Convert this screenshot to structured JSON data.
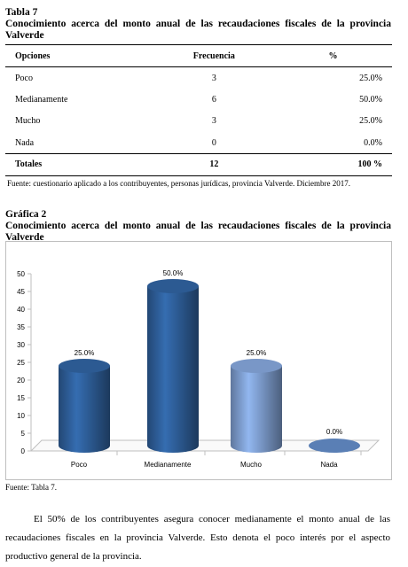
{
  "table": {
    "label": "Tabla 7",
    "caption": "Conocimiento acerca del monto anual de las recaudaciones fiscales de la provincia Valverde",
    "headers": [
      "Opciones",
      "Frecuencia",
      "%"
    ],
    "rows": [
      {
        "option": "Poco",
        "frequency": "3",
        "percent": "25.0%"
      },
      {
        "option": "Medianamente",
        "frequency": "6",
        "percent": "50.0%"
      },
      {
        "option": "Mucho",
        "frequency": "3",
        "percent": "25.0%"
      },
      {
        "option": "Nada",
        "frequency": "0",
        "percent": "0.0%"
      }
    ],
    "total": {
      "option": "Totales",
      "frequency": "12",
      "percent": "100 %"
    },
    "source": "Fuente: cuestionario aplicado a los contribuyentes, personas jurídicas,  provincia Valverde. Diciembre 2017."
  },
  "figure": {
    "label": "Gráfica 2",
    "caption": "Conocimiento acerca del monto anual de las recaudaciones fiscales de la provincia Valverde",
    "source": "Fuente: Tabla 7."
  },
  "chart_data": {
    "type": "bar",
    "categories": [
      "Poco",
      "Medianamente",
      "Mucho",
      "Nada"
    ],
    "values": [
      25.0,
      50.0,
      25.0,
      0.0
    ],
    "data_labels": [
      "25.0%",
      "50.0%",
      "25.0%",
      "0.0%"
    ],
    "ylim": [
      0,
      50
    ],
    "yticks": [
      0,
      5,
      10,
      15,
      20,
      25,
      30,
      35,
      40,
      45,
      50
    ],
    "grid": false,
    "legend": "none",
    "style": "3d-cylinder",
    "colors": [
      "#2e5f9a",
      "#2e5f9a",
      "#7f9fd1",
      "#5a7fb5"
    ]
  },
  "paragraph": "El 50% de los contribuyentes asegura conocer medianamente el monto anual de las recaudaciones fiscales en la provincia Valverde. Esto denota el poco interés por el aspecto productivo general de la provincia."
}
